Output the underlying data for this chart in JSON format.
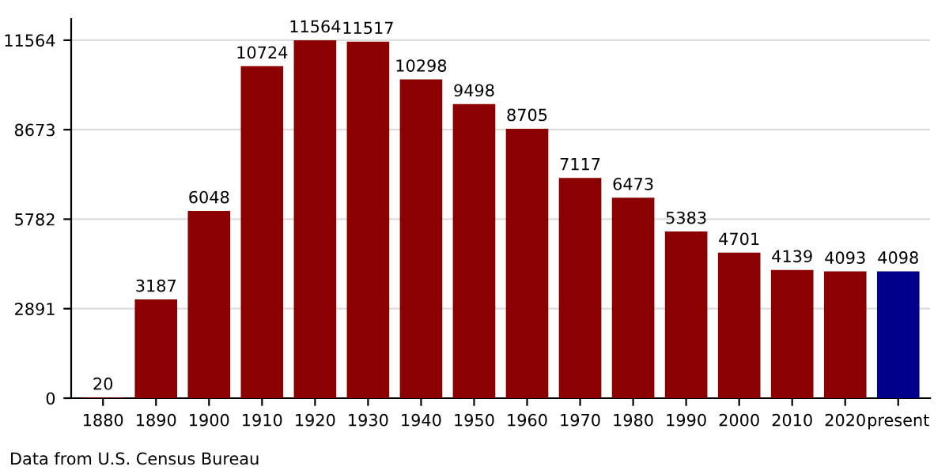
{
  "chart_data": {
    "type": "bar",
    "categories": [
      "1880",
      "1890",
      "1900",
      "1910",
      "1920",
      "1930",
      "1940",
      "1950",
      "1960",
      "1970",
      "1980",
      "1990",
      "2000",
      "2010",
      "2020",
      "present"
    ],
    "values": [
      20,
      3187,
      6048,
      10724,
      11564,
      11517,
      10298,
      9498,
      8705,
      7117,
      6473,
      5383,
      4701,
      4139,
      4093,
      4098
    ],
    "colors": [
      "#8b0000",
      "#8b0000",
      "#8b0000",
      "#8b0000",
      "#8b0000",
      "#8b0000",
      "#8b0000",
      "#8b0000",
      "#8b0000",
      "#8b0000",
      "#8b0000",
      "#8b0000",
      "#8b0000",
      "#8b0000",
      "#8b0000",
      "#00008b"
    ],
    "ylim": [
      0,
      12250
    ],
    "yticks": [
      0,
      2891,
      5782,
      8673,
      11564
    ],
    "grid": "y",
    "data_labels": true,
    "annotations": [
      "Data from U.S. Census Bureau"
    ]
  }
}
